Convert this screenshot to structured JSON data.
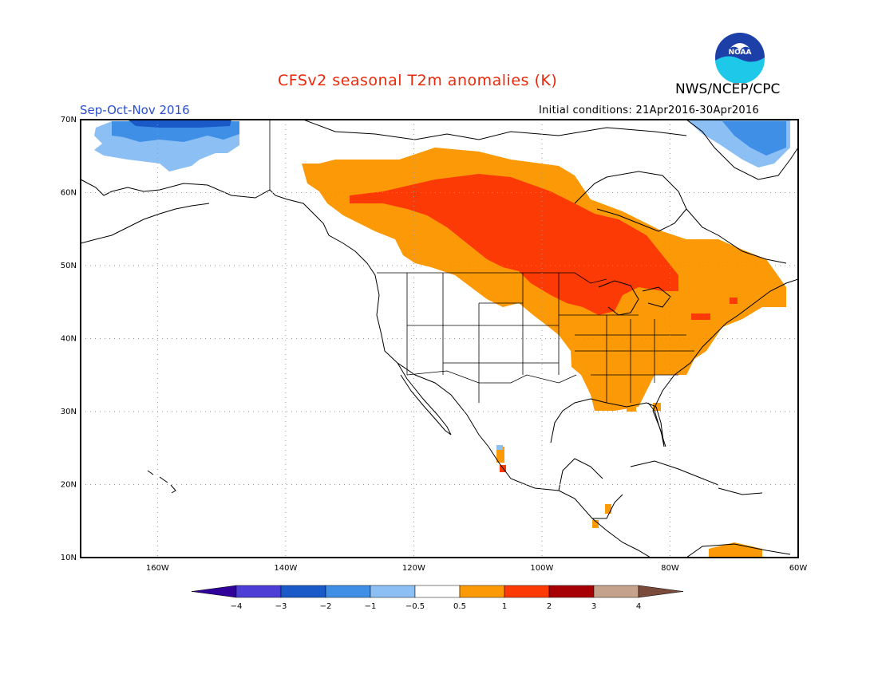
{
  "header": {
    "title": "CFSv2 seasonal T2m anomalies (K)",
    "agency": "NWS/NCEP/CPC",
    "logo_text": "NOAA",
    "season": "Sep-Oct-Nov 2016",
    "initial_conditions": "Initial conditions: 21Apr2016-30Apr2016"
  },
  "map": {
    "lon_range": [
      -172,
      -60
    ],
    "lat_range": [
      10,
      70
    ],
    "lat_ticks": [
      {
        "value": 70,
        "label": "70N"
      },
      {
        "value": 60,
        "label": "60N"
      },
      {
        "value": 50,
        "label": "50N"
      },
      {
        "value": 40,
        "label": "40N"
      },
      {
        "value": 30,
        "label": "30N"
      },
      {
        "value": 20,
        "label": "20N"
      },
      {
        "value": 10,
        "label": "10N"
      }
    ],
    "lon_ticks": [
      {
        "value": -160,
        "label": "160W"
      },
      {
        "value": -140,
        "label": "140W"
      },
      {
        "value": -120,
        "label": "120W"
      },
      {
        "value": -100,
        "label": "100W"
      },
      {
        "value": -80,
        "label": "80W"
      },
      {
        "value": -60,
        "label": "60W"
      }
    ],
    "grid_lines": true,
    "colors": {
      "blue_dark": "#1a5ac8",
      "blue_mid": "#3f8fe6",
      "blue_light": "#8cc0f5",
      "orange": "#fb9a06",
      "red_orange": "#fc3a05",
      "red": "#e31a1c",
      "coast": "#000000"
    }
  },
  "legend": {
    "labels": [
      "−4",
      "−3",
      "−2",
      "−1",
      "−0.5",
      "0.5",
      "1",
      "2",
      "3",
      "4"
    ],
    "colors": [
      "#30029a",
      "#4d3fd6",
      "#1a5ac8",
      "#3f8fe6",
      "#8cc0f5",
      "#ffffff",
      "#fb9a06",
      "#fc3a05",
      "#a60205",
      "#c4a28c",
      "#7a4a3a"
    ]
  }
}
